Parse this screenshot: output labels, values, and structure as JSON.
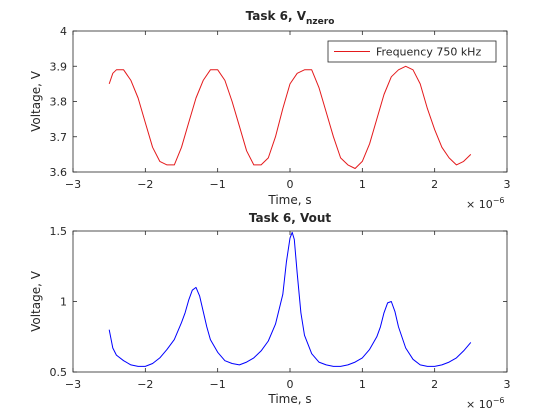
{
  "chart_data": [
    {
      "type": "line",
      "title": "Task 6, V",
      "title_subscript": "nzero",
      "xlabel": "Time, s",
      "ylabel": "Voltage, V",
      "xlim": [
        -3,
        3
      ],
      "ylim": [
        3.6,
        4.0
      ],
      "x_exponent_base": "× 10",
      "x_exponent": "−6",
      "xticks": [
        "−3",
        "−2",
        "−1",
        "0",
        "1",
        "2",
        "3"
      ],
      "yticks": [
        "3.6",
        "3.7",
        "3.8",
        "3.9",
        "4"
      ],
      "grid": false,
      "legend_position": "top-right",
      "series": [
        {
          "name": "Frequency 750 kHz",
          "color": "#e41a1c",
          "x": [
            -2.5,
            -2.45,
            -2.4,
            -2.3,
            -2.2,
            -2.1,
            -2.0,
            -1.9,
            -1.8,
            -1.7,
            -1.6,
            -1.5,
            -1.4,
            -1.3,
            -1.2,
            -1.1,
            -1.0,
            -0.9,
            -0.8,
            -0.7,
            -0.6,
            -0.5,
            -0.4,
            -0.3,
            -0.2,
            -0.1,
            0.0,
            0.1,
            0.2,
            0.3,
            0.4,
            0.5,
            0.6,
            0.7,
            0.8,
            0.9,
            1.0,
            1.1,
            1.2,
            1.3,
            1.4,
            1.5,
            1.6,
            1.7,
            1.8,
            1.9,
            2.0,
            2.1,
            2.2,
            2.3,
            2.4,
            2.5
          ],
          "y": [
            3.85,
            3.88,
            3.89,
            3.89,
            3.86,
            3.81,
            3.74,
            3.67,
            3.63,
            3.62,
            3.62,
            3.67,
            3.74,
            3.81,
            3.86,
            3.89,
            3.89,
            3.86,
            3.8,
            3.73,
            3.66,
            3.62,
            3.62,
            3.64,
            3.7,
            3.78,
            3.85,
            3.88,
            3.89,
            3.89,
            3.84,
            3.77,
            3.7,
            3.64,
            3.62,
            3.61,
            3.63,
            3.68,
            3.75,
            3.82,
            3.87,
            3.89,
            3.9,
            3.89,
            3.85,
            3.78,
            3.72,
            3.67,
            3.64,
            3.62,
            3.63,
            3.65
          ]
        }
      ]
    },
    {
      "type": "line",
      "title": "Task 6, Vout",
      "xlabel": "Time, s",
      "ylabel": "Voltage, V",
      "xlim": [
        -3,
        3
      ],
      "ylim": [
        0.5,
        1.5
      ],
      "x_exponent_base": "× 10",
      "x_exponent": "−6",
      "xticks": [
        "−3",
        "−2",
        "−1",
        "0",
        "1",
        "2",
        "3"
      ],
      "yticks": [
        "0.5",
        "1",
        "1.5"
      ],
      "grid": false,
      "series": [
        {
          "color": "#0000ff",
          "x": [
            -2.5,
            -2.45,
            -2.4,
            -2.3,
            -2.2,
            -2.1,
            -2.0,
            -1.9,
            -1.8,
            -1.7,
            -1.6,
            -1.5,
            -1.45,
            -1.4,
            -1.35,
            -1.3,
            -1.25,
            -1.2,
            -1.15,
            -1.1,
            -1.0,
            -0.9,
            -0.8,
            -0.7,
            -0.6,
            -0.5,
            -0.4,
            -0.3,
            -0.2,
            -0.1,
            -0.05,
            0.0,
            0.03,
            0.06,
            0.1,
            0.15,
            0.2,
            0.3,
            0.4,
            0.5,
            0.6,
            0.7,
            0.8,
            0.9,
            1.0,
            1.1,
            1.2,
            1.25,
            1.3,
            1.35,
            1.4,
            1.45,
            1.5,
            1.6,
            1.7,
            1.8,
            1.9,
            2.0,
            2.1,
            2.2,
            2.3,
            2.4,
            2.5
          ],
          "y": [
            0.8,
            0.67,
            0.62,
            0.58,
            0.55,
            0.54,
            0.54,
            0.56,
            0.6,
            0.66,
            0.73,
            0.85,
            0.92,
            1.01,
            1.08,
            1.1,
            1.04,
            0.93,
            0.82,
            0.73,
            0.64,
            0.58,
            0.56,
            0.55,
            0.57,
            0.6,
            0.65,
            0.72,
            0.84,
            1.05,
            1.28,
            1.45,
            1.49,
            1.44,
            1.2,
            0.92,
            0.76,
            0.63,
            0.57,
            0.55,
            0.54,
            0.54,
            0.55,
            0.57,
            0.6,
            0.66,
            0.75,
            0.82,
            0.92,
            0.99,
            1.0,
            0.93,
            0.82,
            0.67,
            0.59,
            0.55,
            0.54,
            0.54,
            0.55,
            0.57,
            0.6,
            0.65,
            0.71
          ]
        }
      ]
    }
  ]
}
